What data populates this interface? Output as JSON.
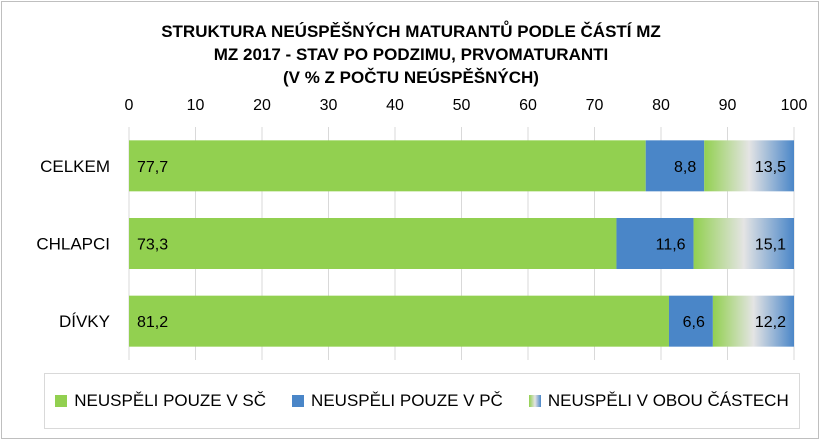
{
  "chart_data": {
    "type": "bar",
    "orientation": "horizontal",
    "stacked": true,
    "title": [
      "STRUKTURA NEÚSPĚŠNÝCH MATURANTŮ PODLE ČÁSTÍ MZ",
      "MZ 2017 - STAV PO PODZIMU, PRVOMATURANTI",
      "(V % Z POČTU NEÚSPĚŠNÝCH)"
    ],
    "categories": [
      "CELKEM",
      "CHLAPCI",
      "DÍVKY"
    ],
    "series": [
      {
        "name": "NEUSPĚLI POUZE V SČ",
        "values": [
          77.7,
          73.3,
          81.2
        ],
        "labels": [
          "77,7",
          "73,3",
          "81,2"
        ],
        "color": "#92d050"
      },
      {
        "name": "NEUSPĚLI POUZE V PČ",
        "values": [
          8.8,
          11.6,
          6.6
        ],
        "labels": [
          "8,8",
          "11,6",
          "6,6"
        ],
        "color": "#4a86c8"
      },
      {
        "name": "NEUSPĚLI V OBOU ČÁSTECH",
        "values": [
          13.5,
          15.1,
          12.2
        ],
        "labels": [
          "13,5",
          "15,1",
          "12,2"
        ],
        "color": "gradient",
        "gradient_colors": [
          "#92d050",
          "#e2e2e2",
          "#4a86c8"
        ]
      }
    ],
    "xlim": [
      0,
      100
    ],
    "xticks": [
      "0",
      "10",
      "20",
      "30",
      "40",
      "50",
      "60",
      "70",
      "80",
      "90",
      "100"
    ],
    "axis_position": "top",
    "grid": true,
    "legend_position": "bottom"
  }
}
